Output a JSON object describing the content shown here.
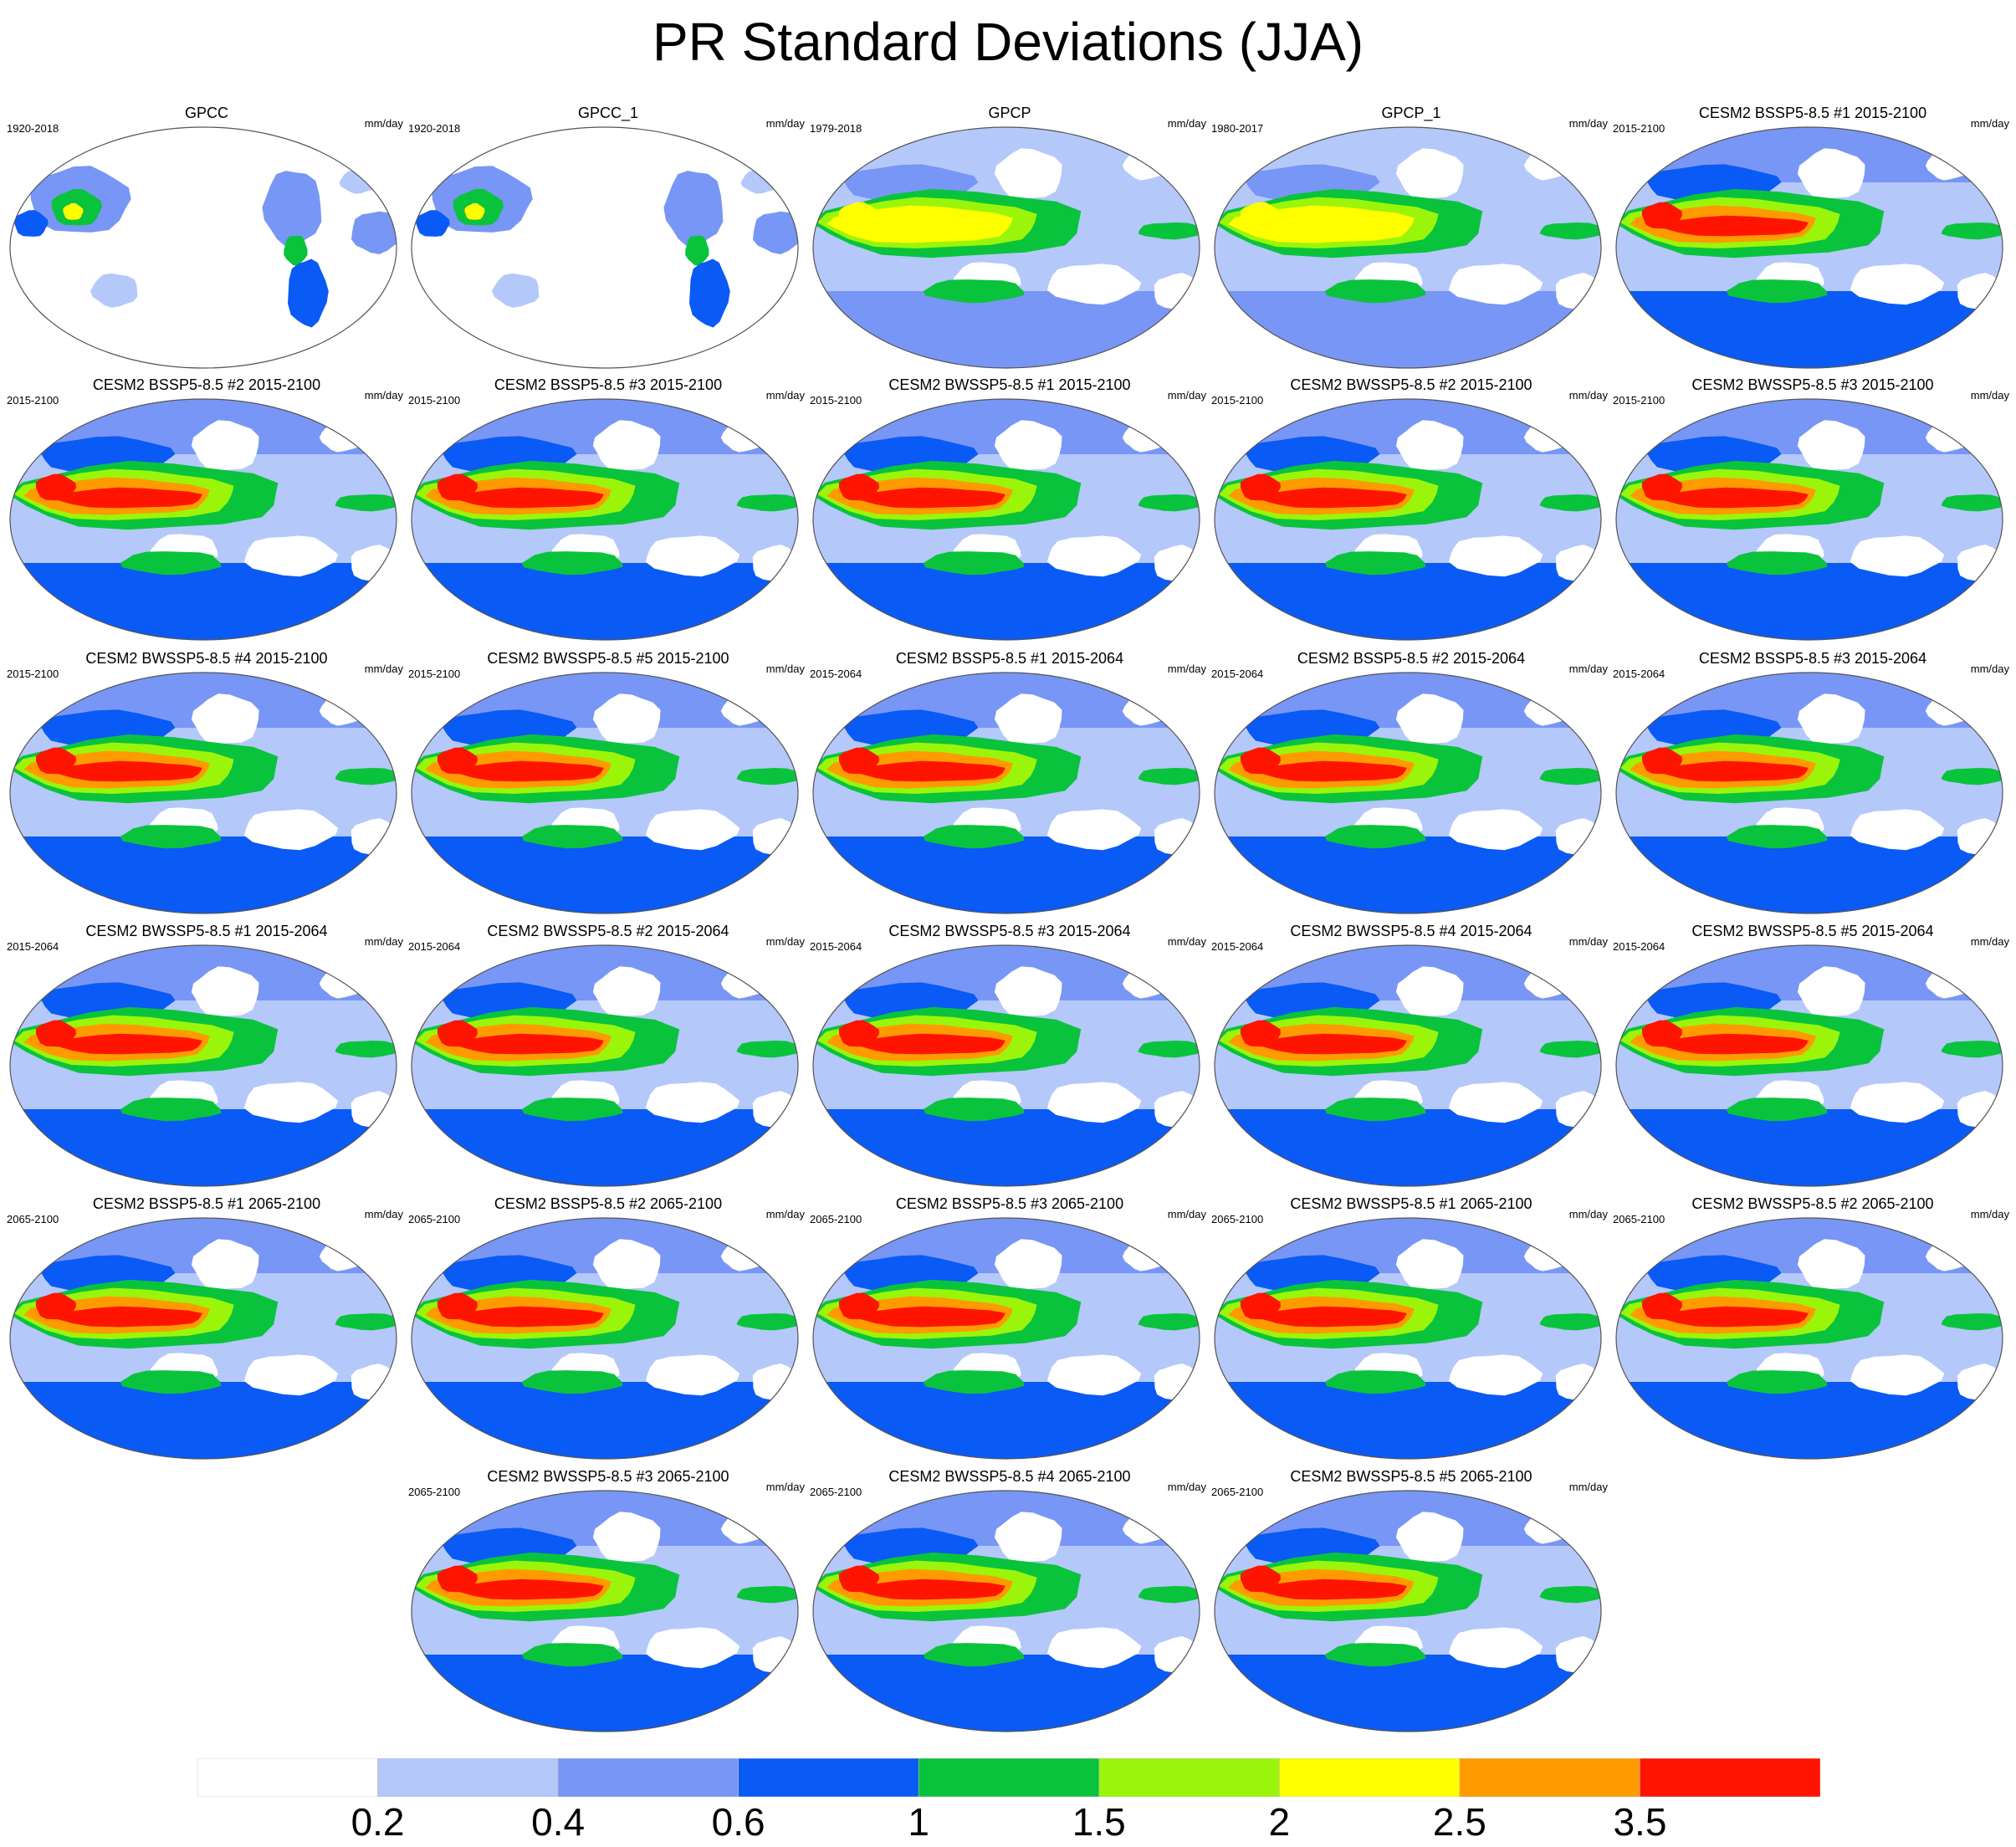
{
  "title": "PR Standard Deviations (JJA)",
  "units": "mm/day",
  "chart_data": {
    "type": "heatmap",
    "title": "PR Standard Deviations (JJA)",
    "variable": "PR",
    "season": "JJA",
    "units": "mm/day",
    "projection": "global map",
    "colorbar": {
      "levels": [
        "0.2",
        "0.4",
        "0.6",
        "1",
        "1.5",
        "2",
        "2.5",
        "3.5"
      ],
      "colors": [
        "#ffffff",
        "#b4c8fa",
        "#7896f5",
        "#0a5af5",
        "#0ac33c",
        "#9bf50a",
        "#ffff00",
        "#ff9b00",
        "#ff1400"
      ]
    },
    "panels": [
      {
        "title": "GPCC",
        "period": "1920-2018",
        "units": "mm/day",
        "kind": "obs_land"
      },
      {
        "title": "GPCC_1",
        "period": "1920-2018",
        "units": "mm/day",
        "kind": "obs_land"
      },
      {
        "title": "GPCP",
        "period": "1979-2018",
        "units": "mm/day",
        "kind": "obs"
      },
      {
        "title": "GPCP_1",
        "period": "1980-2017",
        "units": "mm/day",
        "kind": "obs"
      },
      {
        "title": "CESM2 BSSP5-8.5 #1 2015-2100",
        "period": "2015-2100",
        "units": "mm/day",
        "kind": "model"
      },
      {
        "title": "CESM2 BSSP5-8.5 #2 2015-2100",
        "period": "2015-2100",
        "units": "mm/day",
        "kind": "model"
      },
      {
        "title": "CESM2 BSSP5-8.5 #3 2015-2100",
        "period": "2015-2100",
        "units": "mm/day",
        "kind": "model"
      },
      {
        "title": "CESM2 BWSSP5-8.5 #1 2015-2100",
        "period": "2015-2100",
        "units": "mm/day",
        "kind": "model"
      },
      {
        "title": "CESM2 BWSSP5-8.5 #2 2015-2100",
        "period": "2015-2100",
        "units": "mm/day",
        "kind": "model"
      },
      {
        "title": "CESM2 BWSSP5-8.5 #3 2015-2100",
        "period": "2015-2100",
        "units": "mm/day",
        "kind": "model"
      },
      {
        "title": "CESM2 BWSSP5-8.5 #4 2015-2100",
        "period": "2015-2100",
        "units": "mm/day",
        "kind": "model"
      },
      {
        "title": "CESM2 BWSSP5-8.5 #5 2015-2100",
        "period": "2015-2100",
        "units": "mm/day",
        "kind": "model"
      },
      {
        "title": "CESM2 BSSP5-8.5 #1 2015-2064",
        "period": "2015-2064",
        "units": "mm/day",
        "kind": "model"
      },
      {
        "title": "CESM2 BSSP5-8.5 #2 2015-2064",
        "period": "2015-2064",
        "units": "mm/day",
        "kind": "model"
      },
      {
        "title": "CESM2 BSSP5-8.5 #3 2015-2064",
        "period": "2015-2064",
        "units": "mm/day",
        "kind": "model"
      },
      {
        "title": "CESM2 BWSSP5-8.5 #1 2015-2064",
        "period": "2015-2064",
        "units": "mm/day",
        "kind": "model"
      },
      {
        "title": "CESM2 BWSSP5-8.5 #2 2015-2064",
        "period": "2015-2064",
        "units": "mm/day",
        "kind": "model"
      },
      {
        "title": "CESM2 BWSSP5-8.5 #3 2015-2064",
        "period": "2015-2064",
        "units": "mm/day",
        "kind": "model"
      },
      {
        "title": "CESM2 BWSSP5-8.5 #4 2015-2064",
        "period": "2015-2064",
        "units": "mm/day",
        "kind": "model"
      },
      {
        "title": "CESM2 BWSSP5-8.5 #5 2015-2064",
        "period": "2015-2064",
        "units": "mm/day",
        "kind": "model"
      },
      {
        "title": "CESM2 BSSP5-8.5 #1 2065-2100",
        "period": "2065-2100",
        "units": "mm/day",
        "kind": "model"
      },
      {
        "title": "CESM2 BSSP5-8.5 #2 2065-2100",
        "period": "2065-2100",
        "units": "mm/day",
        "kind": "model"
      },
      {
        "title": "CESM2 BSSP5-8.5 #3 2065-2100",
        "period": "2065-2100",
        "units": "mm/day",
        "kind": "model"
      },
      {
        "title": "CESM2 BWSSP5-8.5 #1 2065-2100",
        "period": "2065-2100",
        "units": "mm/day",
        "kind": "model"
      },
      {
        "title": "CESM2 BWSSP5-8.5 #2 2065-2100",
        "period": "2065-2100",
        "units": "mm/day",
        "kind": "model"
      },
      {
        "title": "CESM2 BWSSP5-8.5 #3 2065-2100",
        "period": "2065-2100",
        "units": "mm/day",
        "kind": "model"
      },
      {
        "title": "CESM2 BWSSP5-8.5 #4 2065-2100",
        "period": "2065-2100",
        "units": "mm/day",
        "kind": "model"
      },
      {
        "title": "CESM2 BWSSP5-8.5 #5 2065-2100",
        "period": "2065-2100",
        "units": "mm/day",
        "kind": "model"
      }
    ]
  }
}
